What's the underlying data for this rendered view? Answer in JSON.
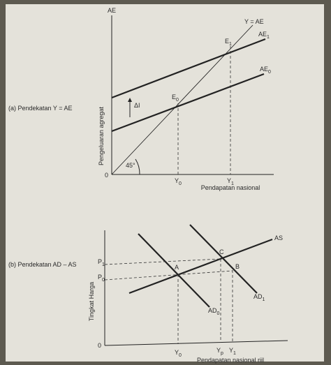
{
  "panel_a": {
    "caption": "(a) Pendekatan Y = AE",
    "y_axis_symbol": "AE",
    "y_axis_title": "Pengeluaran agregat",
    "x_axis_title": "Pendapatan nasional",
    "origin": "0",
    "angle": "45°",
    "delta": "ΔI",
    "labels": {
      "y_eq_ae": "Y = AE",
      "e1": {
        "text": "E",
        "sub": "1"
      },
      "ae1": {
        "text": "AE",
        "sub": "1"
      },
      "ae0": {
        "text": "AE",
        "sub": "0"
      },
      "e0": {
        "text": "E",
        "sub": "0"
      },
      "y0": {
        "text": "Y",
        "sub": "0"
      },
      "y1": {
        "text": "Y",
        "sub": "1"
      }
    }
  },
  "panel_b": {
    "caption": "(b) Pendekatan AD – AS",
    "y_axis_title": "Tingkat Harga",
    "x_axis_title": "Pendapatan nasional riil",
    "origin": "0",
    "labels": {
      "as": "AS",
      "p1": {
        "text": "P",
        "sub": "1"
      },
      "p0": {
        "text": "P",
        "sub": "0"
      },
      "c": "C",
      "a": "A",
      "b": "B",
      "ad0": {
        "text": "AD",
        "sub": "0"
      },
      "ad1": {
        "text": "AD",
        "sub": "1"
      },
      "y0": {
        "text": "Y",
        "sub": "0"
      },
      "yp": {
        "text": "Y",
        "sub": "p"
      },
      "y1": {
        "text": "Y",
        "sub": "1"
      }
    }
  }
}
